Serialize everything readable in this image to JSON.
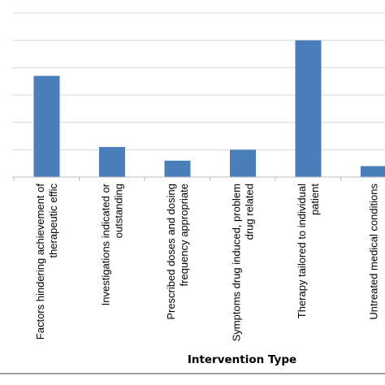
{
  "chart_data": {
    "type": "bar",
    "title": "",
    "xlabel": "Intervention Type",
    "ylabel": "",
    "categories": [
      [
        "Factors hindering achievement of",
        "therapeutic effic"
      ],
      [
        "Investigations indicated or",
        "outstanding"
      ],
      [
        "Prescribed doses and dosing",
        "frequency appropriate"
      ],
      [
        "Symptoms drug induced, problem",
        "drug related"
      ],
      [
        "Therapy tailored to individual",
        "patient"
      ],
      [
        "Untreated medical conditions"
      ]
    ],
    "values": [
      3.7,
      1.1,
      0.6,
      1.0,
      5.0,
      0.4
    ],
    "ylim": [
      0,
      6
    ],
    "gridlines": true,
    "legend": "none",
    "colors": {
      "bar": "#4A7EBB",
      "gridline": "#D9D9D9",
      "axis": "#BFBFBF",
      "frame": "#808080"
    }
  }
}
